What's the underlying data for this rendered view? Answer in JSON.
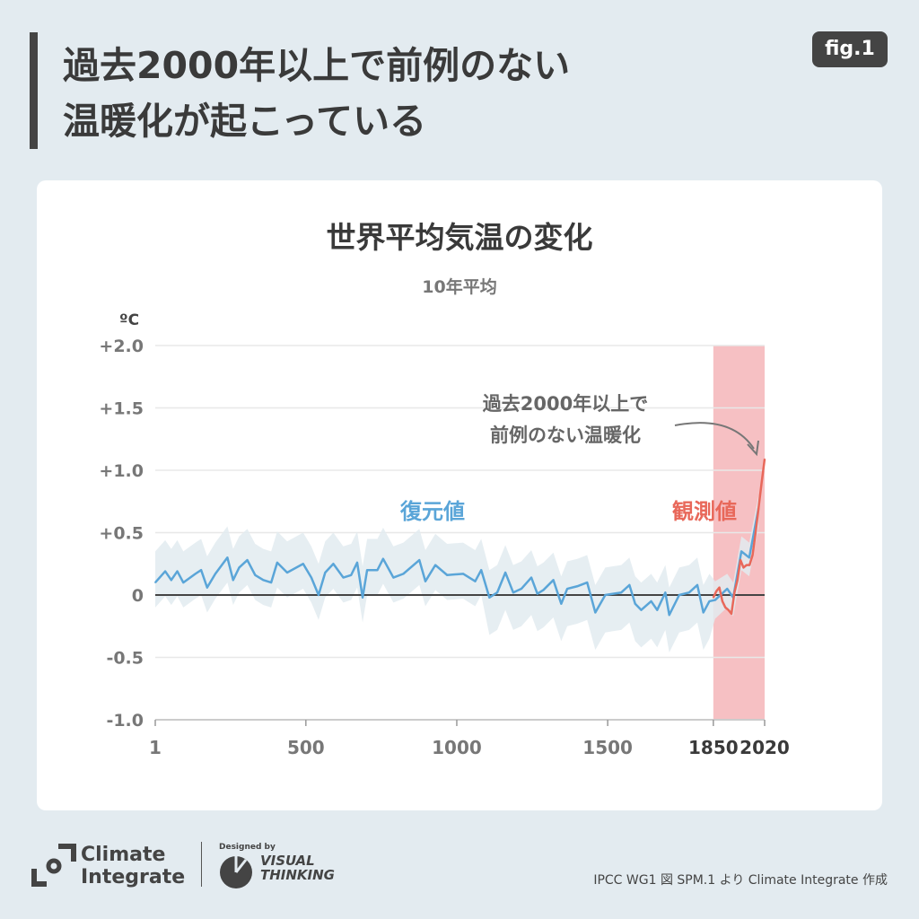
{
  "header": {
    "title_line1": "過去2000年以上で前例のない",
    "title_line2": "温暖化が起こっている",
    "badge": "fig.1"
  },
  "chart_data": {
    "type": "line",
    "title": "世界平均気温の変化",
    "subtitle": "10年平均",
    "ylabel": "ºC",
    "ylim": [
      -1.0,
      2.0
    ],
    "xlim": [
      1,
      2020
    ],
    "y_ticks": [
      "+2.0",
      "+1.5",
      "+1.0",
      "+0.5",
      "0",
      "-0.5",
      "-1.0"
    ],
    "y_tick_values": [
      2.0,
      1.5,
      1.0,
      0.5,
      0,
      -0.5,
      -1.0
    ],
    "x_ticks": [
      "1",
      "500",
      "1000",
      "1500",
      "1850",
      "2020"
    ],
    "x_tick_values": [
      1,
      500,
      1000,
      1500,
      1850,
      2020
    ],
    "grid": true,
    "highlight_range": [
      1850,
      2020
    ],
    "annotation": "過去2000年以上で\n前例のない温暖化",
    "annotation_line1": "過去2000年以上で",
    "annotation_line2": "前例のない温暖化",
    "colors": {
      "reconstructed": "#5aa5d8",
      "observed": "#e8685a",
      "band": "#e2ebf0",
      "highlight": "#f6c0c3"
    },
    "series": [
      {
        "name": "復元値",
        "x": [
          1,
          34,
          54,
          74,
          94,
          134,
          153,
          173,
          200,
          240,
          259,
          279,
          306,
          332,
          359,
          385,
          405,
          438,
          491,
          518,
          542,
          564,
          591,
          624,
          650,
          670,
          688,
          703,
          737,
          756,
          790,
          823,
          876,
          896,
          929,
          968,
          1021,
          1061,
          1081,
          1108,
          1134,
          1161,
          1187,
          1214,
          1247,
          1267,
          1287,
          1320,
          1346,
          1366,
          1399,
          1432,
          1459,
          1492,
          1518,
          1545,
          1572,
          1591,
          1611,
          1644,
          1664,
          1691,
          1704,
          1737,
          1770,
          1797,
          1817,
          1837,
          1856,
          1896,
          1916,
          1943,
          1969,
          2000
        ],
        "values": [
          0.1,
          0.19,
          0.12,
          0.19,
          0.1,
          0.17,
          0.2,
          0.06,
          0.17,
          0.3,
          0.12,
          0.22,
          0.28,
          0.16,
          0.12,
          0.1,
          0.26,
          0.18,
          0.25,
          0.14,
          0,
          0.18,
          0.25,
          0.14,
          0.16,
          0.26,
          -0.02,
          0.2,
          0.2,
          0.29,
          0.14,
          0.17,
          0.28,
          0.11,
          0.24,
          0.16,
          0.17,
          0.11,
          0.2,
          -0.02,
          0.02,
          0.18,
          0.02,
          0.05,
          0.14,
          0.01,
          0.04,
          0.12,
          -0.07,
          0.05,
          0.07,
          0.1,
          -0.14,
          0,
          0.01,
          0.02,
          0.08,
          -0.07,
          -0.12,
          -0.05,
          -0.12,
          0.02,
          -0.16,
          0,
          0.02,
          0.08,
          -0.14,
          -0.05,
          -0.04,
          0.05,
          -0.02,
          0.35,
          0.3,
          0.7
        ],
        "band_upper": [
          0.35,
          0.44,
          0.37,
          0.44,
          0.35,
          0.42,
          0.45,
          0.31,
          0.42,
          0.55,
          0.37,
          0.47,
          0.53,
          0.41,
          0.37,
          0.35,
          0.51,
          0.43,
          0.5,
          0.39,
          0.25,
          0.43,
          0.5,
          0.39,
          0.41,
          0.51,
          0.23,
          0.45,
          0.45,
          0.54,
          0.39,
          0.42,
          0.53,
          0.36,
          0.49,
          0.41,
          0.42,
          0.36,
          0.45,
          0.2,
          0.24,
          0.4,
          0.24,
          0.27,
          0.36,
          0.23,
          0.26,
          0.34,
          0.15,
          0.27,
          0.29,
          0.32,
          0.08,
          0.22,
          0.23,
          0.24,
          0.3,
          0.15,
          0.1,
          0.17,
          0.1,
          0.24,
          0.06,
          0.22,
          0.24,
          0.3,
          0.08,
          0.17,
          0.11,
          0.17,
          0.1,
          0.47,
          0.42,
          0.8
        ],
        "band_lower": [
          -0.1,
          -0.01,
          -0.08,
          -0.01,
          -0.1,
          -0.03,
          0,
          -0.14,
          -0.03,
          0.1,
          -0.08,
          0.02,
          0.08,
          -0.04,
          -0.08,
          -0.1,
          0.06,
          -0.02,
          0.05,
          -0.06,
          -0.2,
          -0.02,
          0.05,
          -0.06,
          -0.04,
          0.06,
          -0.22,
          0,
          0,
          0.09,
          -0.06,
          -0.03,
          0.08,
          -0.09,
          0.04,
          -0.04,
          -0.03,
          -0.09,
          0,
          -0.32,
          -0.28,
          -0.12,
          -0.28,
          -0.25,
          -0.16,
          -0.29,
          -0.26,
          -0.18,
          -0.37,
          -0.25,
          -0.23,
          -0.2,
          -0.44,
          -0.3,
          -0.29,
          -0.28,
          -0.22,
          -0.37,
          -0.42,
          -0.35,
          -0.42,
          -0.28,
          -0.46,
          -0.3,
          -0.28,
          -0.22,
          -0.44,
          -0.35,
          -0.19,
          -0.1,
          -0.17,
          0.2,
          0.15,
          0.55
        ]
      },
      {
        "name": "観測値",
        "x": [
          1850,
          1860,
          1870,
          1880,
          1890,
          1900,
          1910,
          1920,
          1930,
          1940,
          1950,
          1960,
          1970,
          1980,
          1990,
          2000,
          2010,
          2020
        ],
        "values": [
          -0.02,
          0.03,
          0.06,
          -0.05,
          -0.1,
          -0.12,
          -0.15,
          0.02,
          0.12,
          0.28,
          0.22,
          0.24,
          0.24,
          0.32,
          0.5,
          0.7,
          0.9,
          1.09
        ]
      }
    ]
  },
  "footer": {
    "logo_text_line1": "Climate",
    "logo_text_line2": "Integrate",
    "designed_by": "Designed by",
    "vt_line1": "VISUAL",
    "vt_line2": "THINKING",
    "credit": "IPCC WG1 図 SPM.1 より Climate Integrate 作成"
  }
}
